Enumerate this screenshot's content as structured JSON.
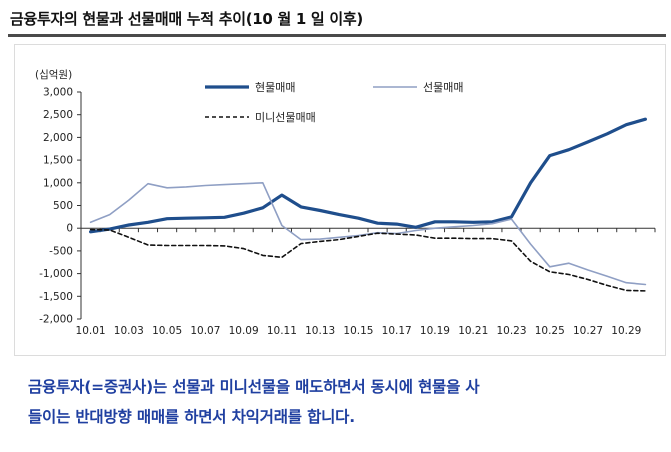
{
  "title": "금융투자의 현물과 선물매매 누적 추이(10 월 1 일 이후)",
  "caption": {
    "line1": "금융투자(=증권사)는 선물과 미니선물을 매도하면서 동시에 현물을 사",
    "line2": "들이는 반대방향 매매를 하면서 차익거래를 합니다."
  },
  "chart_data": {
    "type": "line",
    "title": "금융투자의 현물과 선물매매 누적 추이(10 월 1 일 이후)",
    "ylabel": "(십억원)",
    "xlabel": "",
    "ylim": [
      -2000,
      3000
    ],
    "yticks": [
      3000,
      2500,
      2000,
      1500,
      1000,
      500,
      0,
      -500,
      -1000,
      -1500,
      -2000
    ],
    "ytick_labels": [
      "3,000",
      "2,500",
      "2,000",
      "1,500",
      "1,000",
      "500",
      "0",
      "-500",
      "-1,000",
      "-1,500",
      "-2,000"
    ],
    "x": [
      "10.01",
      "10.02",
      "10.03",
      "10.04",
      "10.05",
      "10.06",
      "10.07",
      "10.08",
      "10.09",
      "10.10",
      "10.11",
      "10.12",
      "10.13",
      "10.14",
      "10.15",
      "10.16",
      "10.17",
      "10.18",
      "10.19",
      "10.20",
      "10.21",
      "10.22",
      "10.23",
      "10.24",
      "10.25",
      "10.26",
      "10.27",
      "10.28",
      "10.29",
      "10.30"
    ],
    "xtick_labels": [
      "10.01",
      "10.03",
      "10.05",
      "10.07",
      "10.09",
      "10.11",
      "10.13",
      "10.15",
      "10.17",
      "10.19",
      "10.21",
      "10.23",
      "10.25",
      "10.27",
      "10.29"
    ],
    "legend_position": "top-center",
    "series": [
      {
        "name": "현물매매",
        "color": "#1f4e8c",
        "style": "solid-thick",
        "values": [
          -80,
          -20,
          70,
          130,
          210,
          220,
          230,
          240,
          330,
          450,
          730,
          470,
          390,
          300,
          220,
          110,
          90,
          20,
          140,
          140,
          130,
          140,
          250,
          1000,
          1600,
          1730,
          1900,
          2080,
          2280,
          2400
        ]
      },
      {
        "name": "선물매매",
        "color": "#8f9fc4",
        "style": "solid-thin",
        "values": [
          130,
          300,
          620,
          980,
          890,
          910,
          940,
          960,
          980,
          1000,
          60,
          -250,
          -240,
          -200,
          -160,
          -100,
          -120,
          -50,
          0,
          30,
          60,
          100,
          200,
          -350,
          -850,
          -770,
          -920,
          -1060,
          -1200,
          -1240
        ]
      },
      {
        "name": "미니선물매매",
        "color": "#111111",
        "style": "dashed",
        "values": [
          -30,
          -40,
          -200,
          -370,
          -380,
          -380,
          -380,
          -390,
          -450,
          -600,
          -640,
          -340,
          -290,
          -250,
          -180,
          -110,
          -130,
          -150,
          -220,
          -220,
          -230,
          -230,
          -280,
          -730,
          -960,
          -1020,
          -1130,
          -1260,
          -1370,
          -1380
        ]
      }
    ]
  }
}
